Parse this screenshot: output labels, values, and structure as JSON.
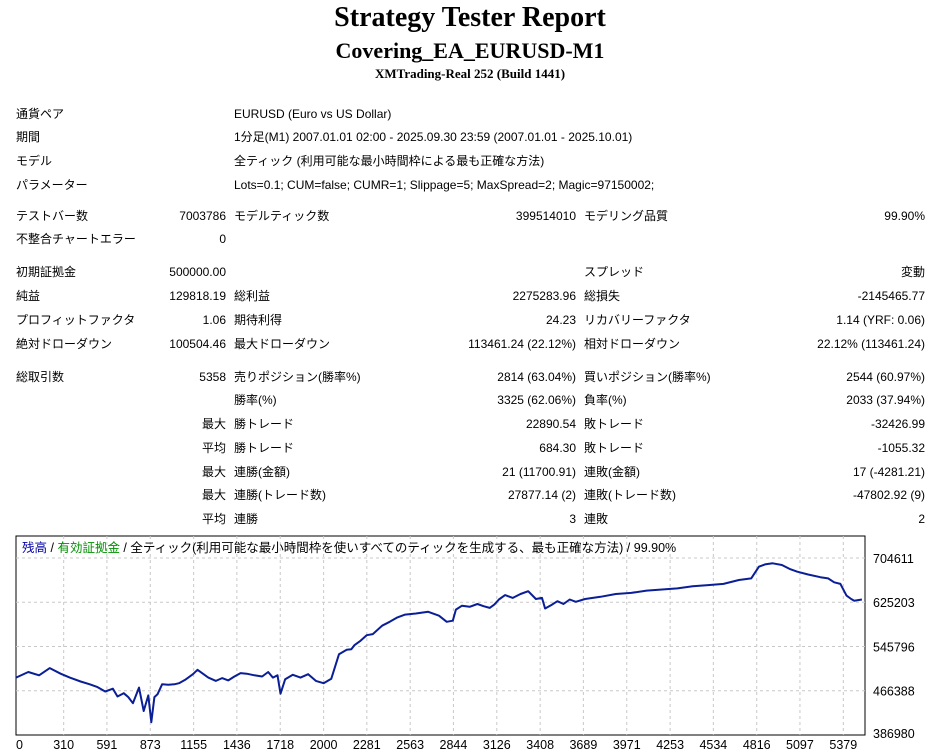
{
  "header": {
    "title": "Strategy Tester Report",
    "subtitle": "Covering_EA_EURUSD-M1",
    "server": "XMTrading-Real 252 (Build 1441)"
  },
  "info": {
    "symbol_label": "通貨ペア",
    "symbol_value": "EURUSD (Euro vs US Dollar)",
    "period_label": "期間",
    "period_value": "1分足(M1) 2007.01.01 02:00 - 2025.09.30 23:59 (2007.01.01 - 2025.10.01)",
    "model_label": "モデル",
    "model_value": "全ティック (利用可能な最小時間枠による最も正確な方法)",
    "params_label": "パラメーター",
    "params_value": "Lots=0.1; CUM=false; CUMR=1; Slippage=5; MaxSpread=2; Magic=97150002;"
  },
  "stats": {
    "bars_label": "テストバー数",
    "bars_value": "7003786",
    "ticks_label": "モデルティック数",
    "ticks_value": "399514010",
    "quality_label": "モデリング品質",
    "quality_value": "99.90%",
    "errors_label": "不整合チャートエラー",
    "errors_value": "0",
    "deposit_label": "初期証拠金",
    "deposit_value": "500000.00",
    "spread_label": "スプレッド",
    "spread_value": "変動",
    "net_label": "純益",
    "net_value": "129818.19",
    "gross_profit_label": "総利益",
    "gross_profit_value": "2275283.96",
    "gross_loss_label": "総損失",
    "gross_loss_value": "-2145465.77",
    "pf_label": "プロフィットファクタ",
    "pf_value": "1.06",
    "payoff_label": "期待利得",
    "payoff_value": "24.23",
    "rf_label": "リカバリーファクタ",
    "rf_value": "1.14 (YRF: 0.06)",
    "abs_dd_label": "絶対ドローダウン",
    "abs_dd_value": "100504.46",
    "max_dd_label": "最大ドローダウン",
    "max_dd_value": "113461.24 (22.12%)",
    "rel_dd_label": "相対ドローダウン",
    "rel_dd_value": "22.12% (113461.24)",
    "trades_label": "総取引数",
    "trades_value": "5358",
    "short_label": "売りポジション(勝率%)",
    "short_value": "2814 (63.04%)",
    "long_label": "買いポジション(勝率%)",
    "long_value": "2544 (60.97%)",
    "win_pct_label": "勝率(%)",
    "win_pct_value": "3325 (62.06%)",
    "loss_pct_label": "負率(%)",
    "loss_pct_value": "2033 (37.94%)",
    "largest_label": "最大",
    "avg_label": "平均",
    "win_trade_label": "勝トレード",
    "loss_trade_label": "敗トレード",
    "largest_win_value": "22890.54",
    "largest_loss_value": "-32426.99",
    "avg_win_value": "684.30",
    "avg_loss_value": "-1055.32",
    "cons_wins_money_label": "連勝(金額)",
    "cons_wins_money_value": "21 (11700.91)",
    "cons_losses_money_label": "連敗(金額)",
    "cons_losses_money_value": "17 (-4281.21)",
    "cons_wins_count_label": "連勝(トレード数)",
    "cons_wins_count_value": "27877.14 (2)",
    "cons_losses_count_label": "連敗(トレード数)",
    "cons_losses_count_value": "-47802.92 (9)",
    "avg_cons_wins_label": "連勝",
    "avg_cons_wins_value": "3",
    "avg_cons_losses_label": "連敗",
    "avg_cons_losses_value": "2"
  },
  "chart_legend": {
    "balance": "残高",
    "sep1": " / ",
    "equity": "有効証拠金",
    "rest": " / 全ティック(利用可能な最小時間枠を使いすべてのティックを生成する、最も正確な方法) / 99.90%",
    "balance_color": "#0000a0",
    "equity_color": "#009000"
  },
  "chart_data": {
    "type": "line",
    "title": "",
    "xlabel": "",
    "ylabel": "",
    "grid": true,
    "xlim": [
      0,
      5520
    ],
    "ylim": [
      386980,
      744000
    ],
    "x_ticks": [
      0,
      310,
      591,
      873,
      1155,
      1436,
      1718,
      2000,
      2281,
      2563,
      2844,
      3126,
      3408,
      3689,
      3971,
      4253,
      4534,
      4816,
      5097,
      5379
    ],
    "y_ticks": [
      386980,
      466388,
      545796,
      625203,
      704611
    ],
    "series": [
      {
        "color": "#0a1e96",
        "x": [
          0,
          80,
          150,
          220,
          290,
          350,
          420,
          480,
          530,
          580,
          630,
          660,
          700,
          730,
          760,
          800,
          830,
          860,
          880,
          900,
          920,
          950,
          990,
          1030,
          1060,
          1100,
          1150,
          1180,
          1220,
          1250,
          1300,
          1340,
          1380,
          1420,
          1460,
          1500,
          1550,
          1600,
          1640,
          1670,
          1700,
          1720,
          1750,
          1800,
          1850,
          1900,
          1950,
          2000,
          2050,
          2100,
          2150,
          2180,
          2200,
          2240,
          2280,
          2320,
          2380,
          2430,
          2480,
          2530,
          2600,
          2680,
          2750,
          2800,
          2840,
          2860,
          2900,
          2950,
          3000,
          3040,
          3080,
          3110,
          3140,
          3180,
          3230,
          3280,
          3330,
          3380,
          3420,
          3440,
          3480,
          3520,
          3560,
          3600,
          3640,
          3700,
          3800,
          3900,
          4000,
          4100,
          4200,
          4300,
          4400,
          4500,
          4600,
          4700,
          4780,
          4830,
          4870,
          4920,
          4980,
          5030,
          5080,
          5150,
          5230,
          5280,
          5320,
          5360,
          5400,
          5430,
          5450,
          5500
        ],
        "values": [
          490000,
          500000,
          494000,
          507000,
          497000,
          490000,
          483000,
          478000,
          473000,
          465000,
          470000,
          456000,
          462000,
          455000,
          444000,
          472000,
          430000,
          458000,
          410000,
          455000,
          460000,
          478000,
          477000,
          478000,
          480000,
          486000,
          496000,
          504000,
          496000,
          490000,
          484000,
          489000,
          485000,
          492000,
          498000,
          497000,
          494000,
          492000,
          500000,
          490000,
          494000,
          461000,
          487000,
          495000,
          490000,
          496000,
          484000,
          480000,
          488000,
          532000,
          540000,
          541000,
          548000,
          556000,
          566000,
          568000,
          583000,
          590000,
          598000,
          603000,
          605000,
          608000,
          601000,
          590000,
          592000,
          612000,
          619000,
          617000,
          622000,
          618000,
          615000,
          621000,
          630000,
          638000,
          633000,
          640000,
          645000,
          631000,
          633000,
          614000,
          620000,
          627000,
          622000,
          630000,
          626000,
          631000,
          635000,
          640000,
          642000,
          646000,
          648000,
          650000,
          654000,
          656000,
          658000,
          665000,
          668000,
          689000,
          693000,
          695000,
          692000,
          685000,
          680000,
          675000,
          670000,
          668000,
          661000,
          658000,
          637000,
          631000,
          628000,
          630000
        ]
      }
    ]
  }
}
